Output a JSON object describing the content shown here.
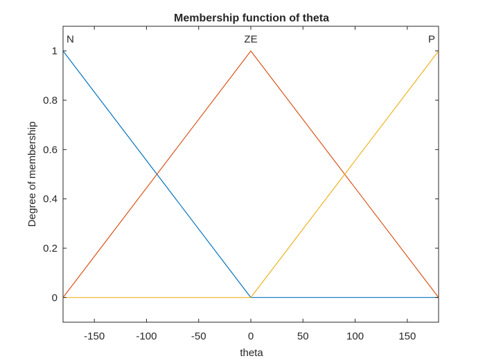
{
  "chart_data": {
    "type": "line",
    "title": "Membership function of theta",
    "xlabel": "theta",
    "ylabel": "Degree of membership",
    "xlim": [
      -180,
      180
    ],
    "ylim": [
      -0.1,
      1.1
    ],
    "xticks": [
      -150,
      -100,
      -50,
      0,
      50,
      100,
      150
    ],
    "yticks": [
      0,
      0.2,
      0.4,
      0.6,
      0.8,
      1
    ],
    "ytick_labels": [
      "0",
      "0.2",
      "0.4",
      "0.6",
      "0.8",
      "1"
    ],
    "grid": false,
    "series": [
      {
        "name": "N",
        "color": "#0072BD",
        "x": [
          -180,
          0,
          180
        ],
        "y": [
          1,
          0,
          0
        ],
        "label_x": -180
      },
      {
        "name": "ZE",
        "color": "#D95319",
        "x": [
          -180,
          0,
          180
        ],
        "y": [
          0,
          1,
          0
        ],
        "label_x": 0
      },
      {
        "name": "P",
        "color": "#EDB120",
        "x": [
          -180,
          0,
          180
        ],
        "y": [
          0,
          0,
          1
        ],
        "label_x": 180
      }
    ]
  }
}
